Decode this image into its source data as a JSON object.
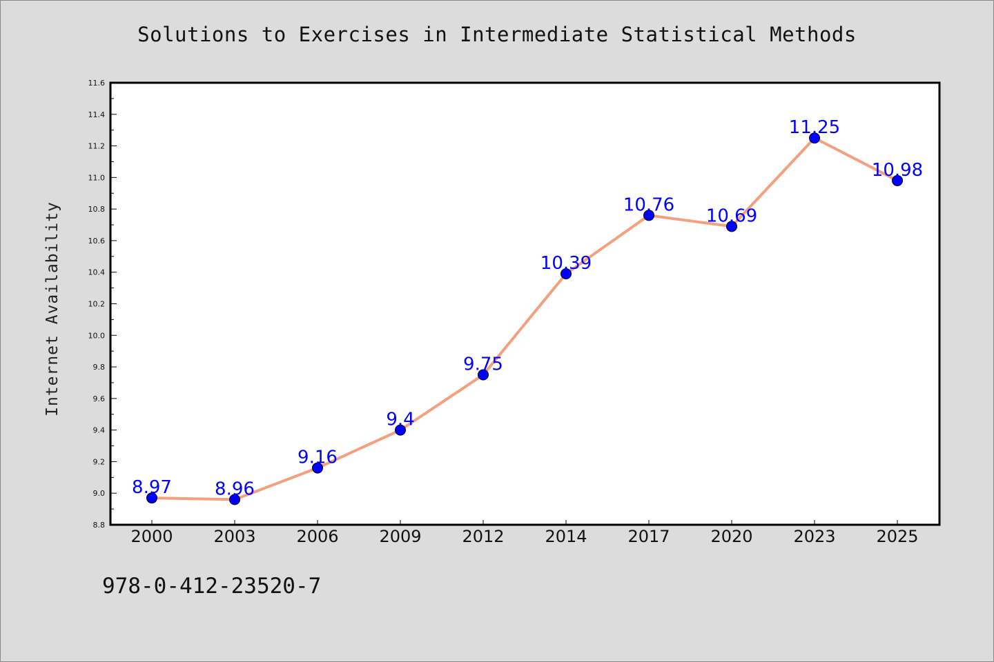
{
  "title": "Solutions to Exercises in Intermediate Statistical Methods",
  "footer_text": "978-0-412-23520-7",
  "colors": {
    "line": "#f4a07e",
    "marker": "#0000ff",
    "data_label": "#0000ff",
    "plot_bg": "#ffffff",
    "page_bg": "#dcdcdc"
  },
  "chart_data": {
    "type": "line",
    "title": "Solutions to Exercises in Intermediate Statistical Methods",
    "xlabel": "",
    "ylabel": "Internet Availability",
    "categories": [
      "2000",
      "2003",
      "2006",
      "2009",
      "2012",
      "2014",
      "2017",
      "2020",
      "2023",
      "2025"
    ],
    "series": [
      {
        "values": [
          8.97,
          8.96,
          9.16,
          9.4,
          9.75,
          10.39,
          10.76,
          10.69,
          11.25,
          10.98
        ]
      }
    ],
    "data_labels": [
      "8.97",
      "8.96",
      "9.16",
      "9.4",
      "9.75",
      "10.39",
      "10.76",
      "10.69",
      "11.25",
      "10.98"
    ],
    "ylim": [
      8.8,
      11.6
    ],
    "yticks": [
      "8.8",
      "9.0",
      "9.2",
      "9.4",
      "9.6",
      "9.8",
      "10.0",
      "10.2",
      "10.4",
      "10.6",
      "10.8",
      "11.0",
      "11.2",
      "11.4",
      "11.6"
    ],
    "grid": false,
    "legend": "none"
  }
}
